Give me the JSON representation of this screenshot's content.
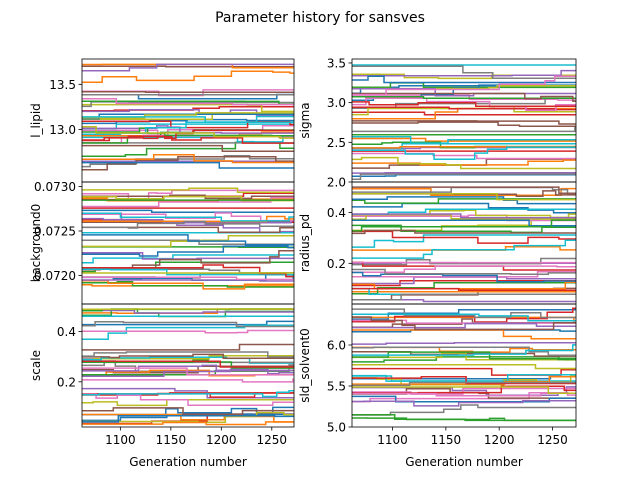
{
  "figure": {
    "title": "Parameter history for sansves"
  },
  "chart_data": {
    "type": "line",
    "title": "Parameter history for sansves",
    "xlabel": "Generation number",
    "x_range": [
      1062,
      1272
    ],
    "x_ticks": [
      1100,
      1150,
      1200,
      1250
    ],
    "series_count_per_panel": 40,
    "panels": [
      {
        "name": "l_lipid",
        "ylabel": "l_lipid",
        "ylim": [
          12.42,
          13.78
        ],
        "yticks": [
          13.0,
          13.5
        ],
        "ytick_labels": [
          "13.0",
          "13.5"
        ],
        "show_xticks": false,
        "value_range": [
          12.55,
          13.72
        ],
        "clip_low": false
      },
      {
        "name": "sigma",
        "ylabel": "sigma",
        "ylim": [
          2.0,
          3.55
        ],
        "yticks": [
          2.0,
          2.5,
          3.0,
          3.5
        ],
        "ytick_labels": [
          "2.0",
          "2.5",
          "3.0",
          "3.5"
        ],
        "show_xticks": false,
        "value_range": [
          2.02,
          3.48
        ],
        "clip_low": false
      },
      {
        "name": "background0",
        "ylabel": "background0",
        "ylim": [
          0.07168,
          0.07305
        ],
        "yticks": [
          0.072,
          0.0725,
          0.073
        ],
        "ytick_labels": [
          "0.0720",
          "0.0725",
          "0.0730"
        ],
        "show_xticks": false,
        "value_range": [
          0.0718,
          0.07298
        ],
        "clip_low": false
      },
      {
        "name": "radius_pd",
        "ylabel": "radius_pd",
        "ylim": [
          0.04,
          0.52
        ],
        "yticks": [
          0.2,
          0.4
        ],
        "ytick_labels": [
          "0.2",
          "0.4"
        ],
        "show_xticks": false,
        "value_range": [
          0.05,
          0.5
        ],
        "clip_low": true
      },
      {
        "name": "scale",
        "ylabel": "scale",
        "ylim": [
          0.02,
          0.51
        ],
        "yticks": [
          0.2,
          0.4
        ],
        "ytick_labels": [
          "0.2",
          "0.4"
        ],
        "show_xticks": true,
        "value_range": [
          0.03,
          0.49
        ],
        "clip_low": false
      },
      {
        "name": "sld_solvent0",
        "ylabel": "sld_solvent0",
        "ylim": [
          5.0,
          6.5
        ],
        "yticks": [
          5.0,
          5.5,
          6.0
        ],
        "ytick_labels": [
          "5.0",
          "5.5",
          "6.0"
        ],
        "show_xticks": true,
        "value_range": [
          5.08,
          6.45
        ],
        "clip_low": false
      }
    ],
    "colors": [
      "#1f77b4",
      "#ff7f0e",
      "#2ca02c",
      "#d62728",
      "#9467bd",
      "#8c564b",
      "#e377c2",
      "#7f7f7f",
      "#bcbd22",
      "#17becf"
    ]
  }
}
